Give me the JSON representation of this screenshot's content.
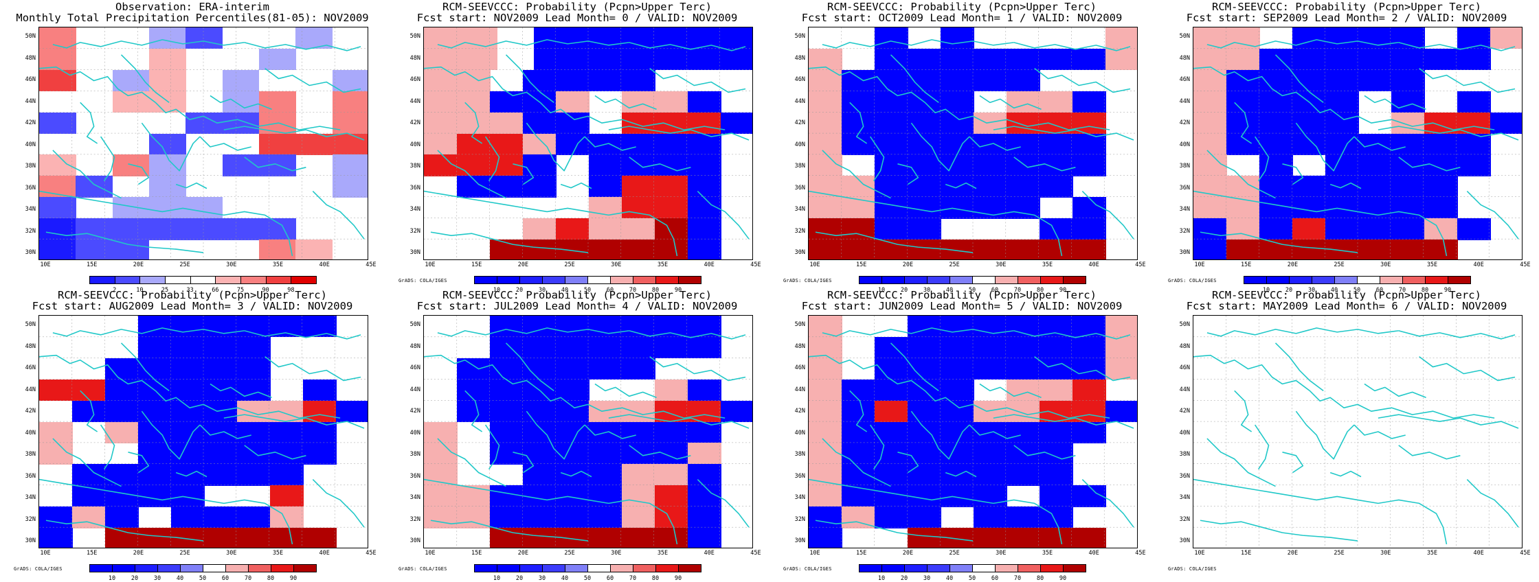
{
  "palettes": {
    "obs": {
      "2": "#1a1aff",
      "10": "#4b4bff",
      "25": "#a9a9fb",
      "66": "#fbb3b3",
      "75": "#f88080",
      "90": "#f04040",
      "98": "#e00000",
      "w": "#ffffff"
    },
    "prob": {
      "10": "#0000ff",
      "20": "#1e1eff",
      "30": "#3c3cfb",
      "40": "#8080f8",
      "50": "#ffffff",
      "60": "#f7b0b0",
      "70": "#f06060",
      "80": "#e81818",
      "90": "#b00000"
    }
  },
  "colorbars": {
    "obs": {
      "ticks": [
        "2",
        "10",
        "25",
        "33",
        "66",
        "75",
        "90",
        "98"
      ]
    },
    "prob": {
      "ticks": [
        "10",
        "20",
        "30",
        "40",
        "50",
        "60",
        "70",
        "80",
        "90"
      ]
    }
  },
  "axes": {
    "lat_labels": [
      "50N",
      "48N",
      "46N",
      "44N",
      "42N",
      "40N",
      "38N",
      "36N",
      "34N",
      "32N",
      "30N"
    ],
    "lon_labels": [
      "10E",
      "15E",
      "20E",
      "25E",
      "30E",
      "35E",
      "40E",
      "45E"
    ]
  },
  "grads_credit": "GrADS: COLA/IGES",
  "panels": [
    {
      "title1": "Observation: ERA-interim",
      "title2": "Monthly Total Precipitation Percentiles(81-05): NOV2009",
      "bar": "obs",
      "credit": false,
      "grid": [
        "pwwnWwwnw",
        "pwwowwnww",
        "rwnownwwn",
        "wwoownpwp",
        "bwwwbbpwp",
        "wwwbwwrrr",
        "owpnwbbwn",
        "pbwnwwwwn",
        "bwnnnwwww",
        "Bbbbbbbww",
        "Bbbwwwpow"
      ]
    },
    {
      "title1": "RCM-SEEVCCC: Probability (Pcpn>Upper Terc)",
      "title2": "Fcst start: NOV2009  Lead Month= 0 / VALID: NOV2009",
      "bar": "prob",
      "credit": true,
      "grid": [
        "ppwBBBBBB",
        "ppwBBBBBB",
        "ppwBBBBwww",
        "ppBBpwppBw",
        "pppBBwrrrB",
        "prrpBBBBBw",
        "rrrBwBBBBw",
        "wBBBwBrrBw",
        "wwwwwprrBw",
        "wwwprppRBw",
        "wwRRRRRRBw"
      ]
    },
    {
      "title1": "RCM-SEEVCCC: Probability (Pcpn>Upper Terc)",
      "title2": "Fcst start: OCT2009  Lead Month= 1 / VALID: NOV2009",
      "bar": "prob",
      "credit": true,
      "grid": [
        "wwBwBwwwwp",
        "pwBBBBBBBp",
        "pBBBBBBwww",
        "pBBBBwppBw",
        "pBBBBprrrw",
        "pBBBBBBBBw",
        "pwBBBBBBBw",
        "ppBBBBBBww",
        "ppBBBBBwBw",
        "RRBBwwwBBw",
        "RRRRRRRRRw"
      ]
    },
    {
      "title1": "RCM-SEEVCCC: Probability (Pcpn>Upper Terc)",
      "title2": "Fcst start: SEP2009  Lead Month= 2 / VALID: NOV2009",
      "bar": "prob",
      "credit": true,
      "grid": [
        "ppwBBBBwBp",
        "ppBBBBBBBw",
        "pBBBBBBwww",
        "pBBBBwBwBw",
        "pBBBBwprrB",
        "pBBBBBBBBw",
        "pwBwBBBBBw",
        "ppBBBBBBww",
        "ppBBBBBBww",
        "BpBrBBBpBw",
        "BRRRRRRRww"
      ]
    },
    {
      "title1": "RCM-SEEVCCC: Probability (Pcpn>Upper Terc)",
      "title2": "Fcst start: AUG2009  Lead Month= 3 / VALID: NOV2009",
      "bar": "prob",
      "credit": true,
      "grid": [
        "wwwBBBBBBw",
        "wwwBBBBwww",
        "wwBBBBBwww",
        "rrBBBBBwBw",
        "wBBBBBpprB",
        "pwpBBBBBBw",
        "pwwBBBBBBw",
        "wBBBBBBBww",
        "wBBBBwwrww",
        "BpBwBBBpww",
        "BwRRRRRRRw"
      ]
    },
    {
      "title1": "RCM-SEEVCCC: Probability (Pcpn>Upper Terc)",
      "title2": "Fcst start: JUL2009  Lead Month= 4 / VALID: NOV2009",
      "bar": "prob",
      "credit": true,
      "grid": [
        "wwBBBBBBBw",
        "wwBBBBBBBw",
        "wBBBBBBwww",
        "wBBBBwwpBw",
        "wBBBBpprrB",
        "pwBBBBBBBw",
        "pwBBBBBBpw",
        "pwwBBBppBw",
        "ppBBBBprBw",
        "ppBBBBprBw",
        "wwRRRRRRBw"
      ]
    },
    {
      "title1": "RCM-SEEVCCC: Probability (Pcpn>Upper Terc)",
      "title2": "Fcst start: JUN2009  Lead Month= 5 / VALID: NOV2009",
      "bar": "prob",
      "credit": true,
      "grid": [
        "pwwBBBBBBp",
        "pwBBBBBBBp",
        "pwBBBBBBBp",
        "pBBBBwpprw",
        "pBrBBpprrB",
        "pBBBBBBBBw",
        "pBBBBBBBww",
        "pBBBBBBBww",
        "pBBBBBwBBw",
        "BpBBwBBBww",
        "BwwRRRRRRw"
      ]
    },
    {
      "title1": "RCM-SEEVCCC: Probability (Pcpn>Upper Terc)",
      "title2": "Fcst start: MAY2009  Lead Month= 6 / VALID: NOV2009",
      "bar": "none",
      "credit": true,
      "grid": []
    }
  ]
}
